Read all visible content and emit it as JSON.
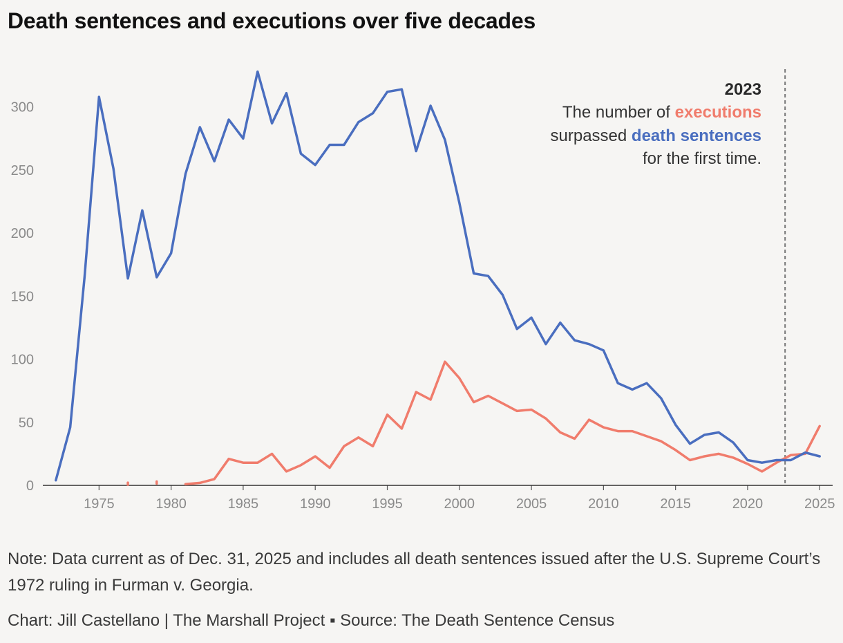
{
  "title": "Death sentences and executions over five decades",
  "note": "Note: Data current as of Dec. 31, 2025 and includes all death sentences issued after the U.S. Supreme Court’s 1972 ruling in Furman v. Georgia.",
  "credit": "Chart: Jill Castellano | The Marshall Project ▪ Source: The Death Sentence Census",
  "colors": {
    "death_sentences": "#4a6ebf",
    "executions": "#f07c6c",
    "background": "#f6f5f3",
    "axis": "#333333",
    "tick_text": "#8a8a8a"
  },
  "annotation": {
    "year": "2023",
    "line1_prefix": "The number of ",
    "line1_highlight": "executions",
    "line2_prefix": "surpassed ",
    "line2_highlight": "death sentences",
    "line3": "for the first time.",
    "marker_x": 2022.6
  },
  "chart_data": {
    "type": "line",
    "title": "Death sentences and executions over five decades",
    "xlabel": "",
    "ylabel": "",
    "xlim": [
      1971.1,
      2025.9
    ],
    "ylim": [
      0,
      330
    ],
    "grid": false,
    "x_ticks": [
      1975,
      1980,
      1985,
      1990,
      1995,
      2000,
      2005,
      2010,
      2015,
      2020,
      2025
    ],
    "y_ticks": [
      0,
      50,
      100,
      150,
      200,
      250,
      300
    ],
    "series": [
      {
        "key": "death_sentences",
        "color": "#4a6ebf",
        "points": [
          [
            1972,
            4
          ],
          [
            1973,
            46
          ],
          [
            1974,
            166
          ],
          [
            1975,
            308
          ],
          [
            1976,
            251
          ],
          [
            1977,
            164
          ],
          [
            1978,
            218
          ],
          [
            1979,
            165
          ],
          [
            1980,
            184
          ],
          [
            1981,
            247
          ],
          [
            1982,
            284
          ],
          [
            1983,
            257
          ],
          [
            1984,
            290
          ],
          [
            1985,
            275
          ],
          [
            1986,
            328
          ],
          [
            1987,
            287
          ],
          [
            1988,
            311
          ],
          [
            1989,
            263
          ],
          [
            1990,
            254
          ],
          [
            1991,
            270
          ],
          [
            1992,
            270
          ],
          [
            1993,
            288
          ],
          [
            1994,
            295
          ],
          [
            1995,
            312
          ],
          [
            1996,
            314
          ],
          [
            1997,
            265
          ],
          [
            1998,
            301
          ],
          [
            1999,
            274
          ],
          [
            2000,
            224
          ],
          [
            2001,
            168
          ],
          [
            2002,
            166
          ],
          [
            2003,
            151
          ],
          [
            2004,
            124
          ],
          [
            2005,
            133
          ],
          [
            2006,
            112
          ],
          [
            2007,
            129
          ],
          [
            2008,
            115
          ],
          [
            2009,
            112
          ],
          [
            2010,
            107
          ],
          [
            2011,
            81
          ],
          [
            2012,
            76
          ],
          [
            2013,
            81
          ],
          [
            2014,
            69
          ],
          [
            2015,
            48
          ],
          [
            2016,
            33
          ],
          [
            2017,
            40
          ],
          [
            2018,
            42
          ],
          [
            2019,
            34
          ],
          [
            2020,
            20
          ],
          [
            2021,
            18
          ],
          [
            2022,
            20
          ],
          [
            2023,
            20
          ],
          [
            2024,
            26
          ],
          [
            2025,
            23
          ]
        ]
      },
      {
        "key": "executions",
        "color": "#f07c6c",
        "points": [
          [
            1977,
            1
          ],
          [
            1979,
            2
          ],
          [
            1981,
            1
          ],
          [
            1982,
            2
          ],
          [
            1983,
            5
          ],
          [
            1984,
            21
          ],
          [
            1985,
            18
          ],
          [
            1986,
            18
          ],
          [
            1987,
            25
          ],
          [
            1988,
            11
          ],
          [
            1989,
            16
          ],
          [
            1990,
            23
          ],
          [
            1991,
            14
          ],
          [
            1992,
            31
          ],
          [
            1993,
            38
          ],
          [
            1994,
            31
          ],
          [
            1995,
            56
          ],
          [
            1996,
            45
          ],
          [
            1997,
            74
          ],
          [
            1998,
            68
          ],
          [
            1999,
            98
          ],
          [
            2000,
            85
          ],
          [
            2001,
            66
          ],
          [
            2002,
            71
          ],
          [
            2003,
            65
          ],
          [
            2004,
            59
          ],
          [
            2005,
            60
          ],
          [
            2006,
            53
          ],
          [
            2007,
            42
          ],
          [
            2008,
            37
          ],
          [
            2009,
            52
          ],
          [
            2010,
            46
          ],
          [
            2011,
            43
          ],
          [
            2012,
            43
          ],
          [
            2013,
            39
          ],
          [
            2014,
            35
          ],
          [
            2015,
            28
          ],
          [
            2016,
            20
          ],
          [
            2017,
            23
          ],
          [
            2018,
            25
          ],
          [
            2019,
            22
          ],
          [
            2020,
            17
          ],
          [
            2021,
            11
          ],
          [
            2022,
            18
          ],
          [
            2023,
            24
          ],
          [
            2024,
            25
          ],
          [
            2025,
            47
          ]
        ]
      }
    ]
  }
}
